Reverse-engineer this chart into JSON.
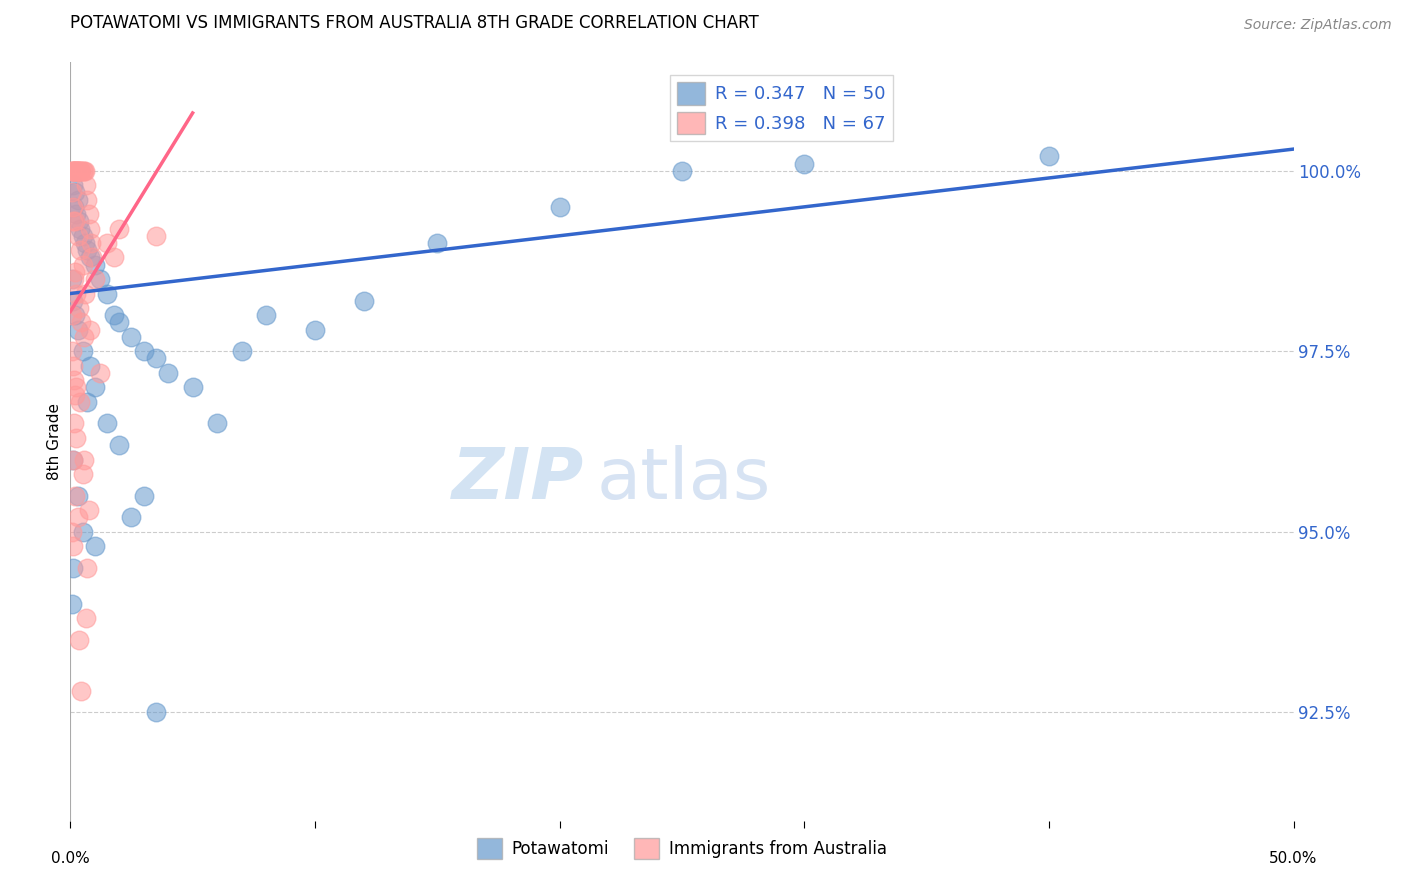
{
  "title": "POTAWATOMI VS IMMIGRANTS FROM AUSTRALIA 8TH GRADE CORRELATION CHART",
  "source": "Source: ZipAtlas.com",
  "ylabel": "8th Grade",
  "ytick_values": [
    92.5,
    95.0,
    97.5,
    100.0
  ],
  "legend_blue": "R = 0.347   N = 50",
  "legend_pink": "R = 0.398   N = 67",
  "legend_label_blue": "Potawatomi",
  "legend_label_pink": "Immigrants from Australia",
  "xlim": [
    0.0,
    50.0
  ],
  "ylim": [
    91.0,
    101.5
  ],
  "blue_color": "#6699CC",
  "pink_color": "#FF9999",
  "blue_line_color": "#3366CC",
  "pink_line_color": "#FF6688",
  "watermark_zip": "ZIP",
  "watermark_atlas": "atlas",
  "blue_scatter": [
    [
      0.1,
      99.8
    ],
    [
      0.2,
      99.7
    ],
    [
      0.3,
      99.6
    ],
    [
      0.15,
      99.5
    ],
    [
      0.25,
      99.4
    ],
    [
      0.35,
      99.3
    ],
    [
      0.4,
      99.2
    ],
    [
      0.5,
      99.1
    ],
    [
      0.6,
      99.0
    ],
    [
      0.7,
      98.9
    ],
    [
      0.8,
      98.8
    ],
    [
      1.0,
      98.7
    ],
    [
      1.2,
      98.5
    ],
    [
      1.5,
      98.3
    ],
    [
      1.8,
      98.0
    ],
    [
      2.0,
      97.9
    ],
    [
      2.5,
      97.7
    ],
    [
      3.0,
      97.5
    ],
    [
      3.5,
      97.4
    ],
    [
      4.0,
      97.2
    ],
    [
      0.05,
      98.5
    ],
    [
      0.1,
      98.2
    ],
    [
      0.2,
      98.0
    ],
    [
      0.3,
      97.8
    ],
    [
      0.5,
      97.5
    ],
    [
      0.8,
      97.3
    ],
    [
      1.0,
      97.0
    ],
    [
      0.7,
      96.8
    ],
    [
      1.5,
      96.5
    ],
    [
      2.0,
      96.2
    ],
    [
      0.1,
      96.0
    ],
    [
      0.3,
      95.5
    ],
    [
      0.5,
      95.0
    ],
    [
      1.0,
      94.8
    ],
    [
      2.5,
      95.2
    ],
    [
      0.1,
      94.5
    ],
    [
      0.05,
      94.0
    ],
    [
      3.0,
      95.5
    ],
    [
      5.0,
      97.0
    ],
    [
      6.0,
      96.5
    ],
    [
      7.0,
      97.5
    ],
    [
      8.0,
      98.0
    ],
    [
      10.0,
      97.8
    ],
    [
      12.0,
      98.2
    ],
    [
      15.0,
      99.0
    ],
    [
      20.0,
      99.5
    ],
    [
      25.0,
      100.0
    ],
    [
      30.0,
      100.1
    ],
    [
      40.0,
      100.2
    ],
    [
      3.5,
      92.5
    ]
  ],
  "pink_scatter": [
    [
      0.05,
      100.0
    ],
    [
      0.08,
      100.0
    ],
    [
      0.1,
      100.0
    ],
    [
      0.12,
      100.0
    ],
    [
      0.15,
      100.0
    ],
    [
      0.18,
      100.0
    ],
    [
      0.2,
      100.0
    ],
    [
      0.22,
      100.0
    ],
    [
      0.25,
      100.0
    ],
    [
      0.28,
      100.0
    ],
    [
      0.3,
      100.0
    ],
    [
      0.32,
      100.0
    ],
    [
      0.35,
      100.0
    ],
    [
      0.38,
      100.0
    ],
    [
      0.4,
      100.0
    ],
    [
      0.45,
      100.0
    ],
    [
      0.5,
      100.0
    ],
    [
      0.55,
      100.0
    ],
    [
      0.6,
      100.0
    ],
    [
      0.65,
      99.8
    ],
    [
      0.7,
      99.6
    ],
    [
      0.75,
      99.4
    ],
    [
      0.8,
      99.2
    ],
    [
      0.85,
      99.0
    ],
    [
      0.9,
      98.8
    ],
    [
      0.1,
      99.5
    ],
    [
      0.2,
      99.3
    ],
    [
      0.3,
      99.1
    ],
    [
      0.4,
      98.9
    ],
    [
      0.5,
      98.7
    ],
    [
      0.15,
      98.5
    ],
    [
      0.25,
      98.3
    ],
    [
      0.35,
      98.1
    ],
    [
      0.45,
      97.9
    ],
    [
      0.55,
      97.7
    ],
    [
      0.05,
      97.5
    ],
    [
      0.1,
      97.3
    ],
    [
      0.15,
      97.1
    ],
    [
      0.2,
      96.9
    ],
    [
      0.6,
      98.3
    ],
    [
      1.0,
      98.5
    ],
    [
      0.8,
      97.8
    ],
    [
      1.5,
      99.0
    ],
    [
      0.1,
      96.0
    ],
    [
      0.2,
      95.5
    ],
    [
      0.05,
      95.0
    ],
    [
      0.1,
      94.8
    ],
    [
      0.3,
      95.2
    ],
    [
      2.0,
      99.2
    ],
    [
      0.15,
      96.5
    ],
    [
      0.08,
      99.7
    ],
    [
      0.12,
      99.3
    ],
    [
      0.18,
      98.6
    ],
    [
      0.22,
      97.0
    ],
    [
      0.4,
      96.8
    ],
    [
      0.05,
      98.0
    ],
    [
      0.25,
      96.3
    ],
    [
      0.5,
      95.8
    ],
    [
      0.7,
      94.5
    ],
    [
      1.2,
      97.2
    ],
    [
      0.35,
      93.5
    ],
    [
      0.55,
      96.0
    ],
    [
      0.75,
      95.3
    ],
    [
      1.8,
      98.8
    ],
    [
      3.5,
      99.1
    ],
    [
      0.65,
      93.8
    ],
    [
      0.45,
      92.8
    ]
  ],
  "blue_line_x": [
    0,
    50
  ],
  "blue_line_y": [
    98.3,
    100.3
  ],
  "pink_line_x": [
    0,
    5
  ],
  "pink_line_y": [
    98.05,
    100.8
  ]
}
